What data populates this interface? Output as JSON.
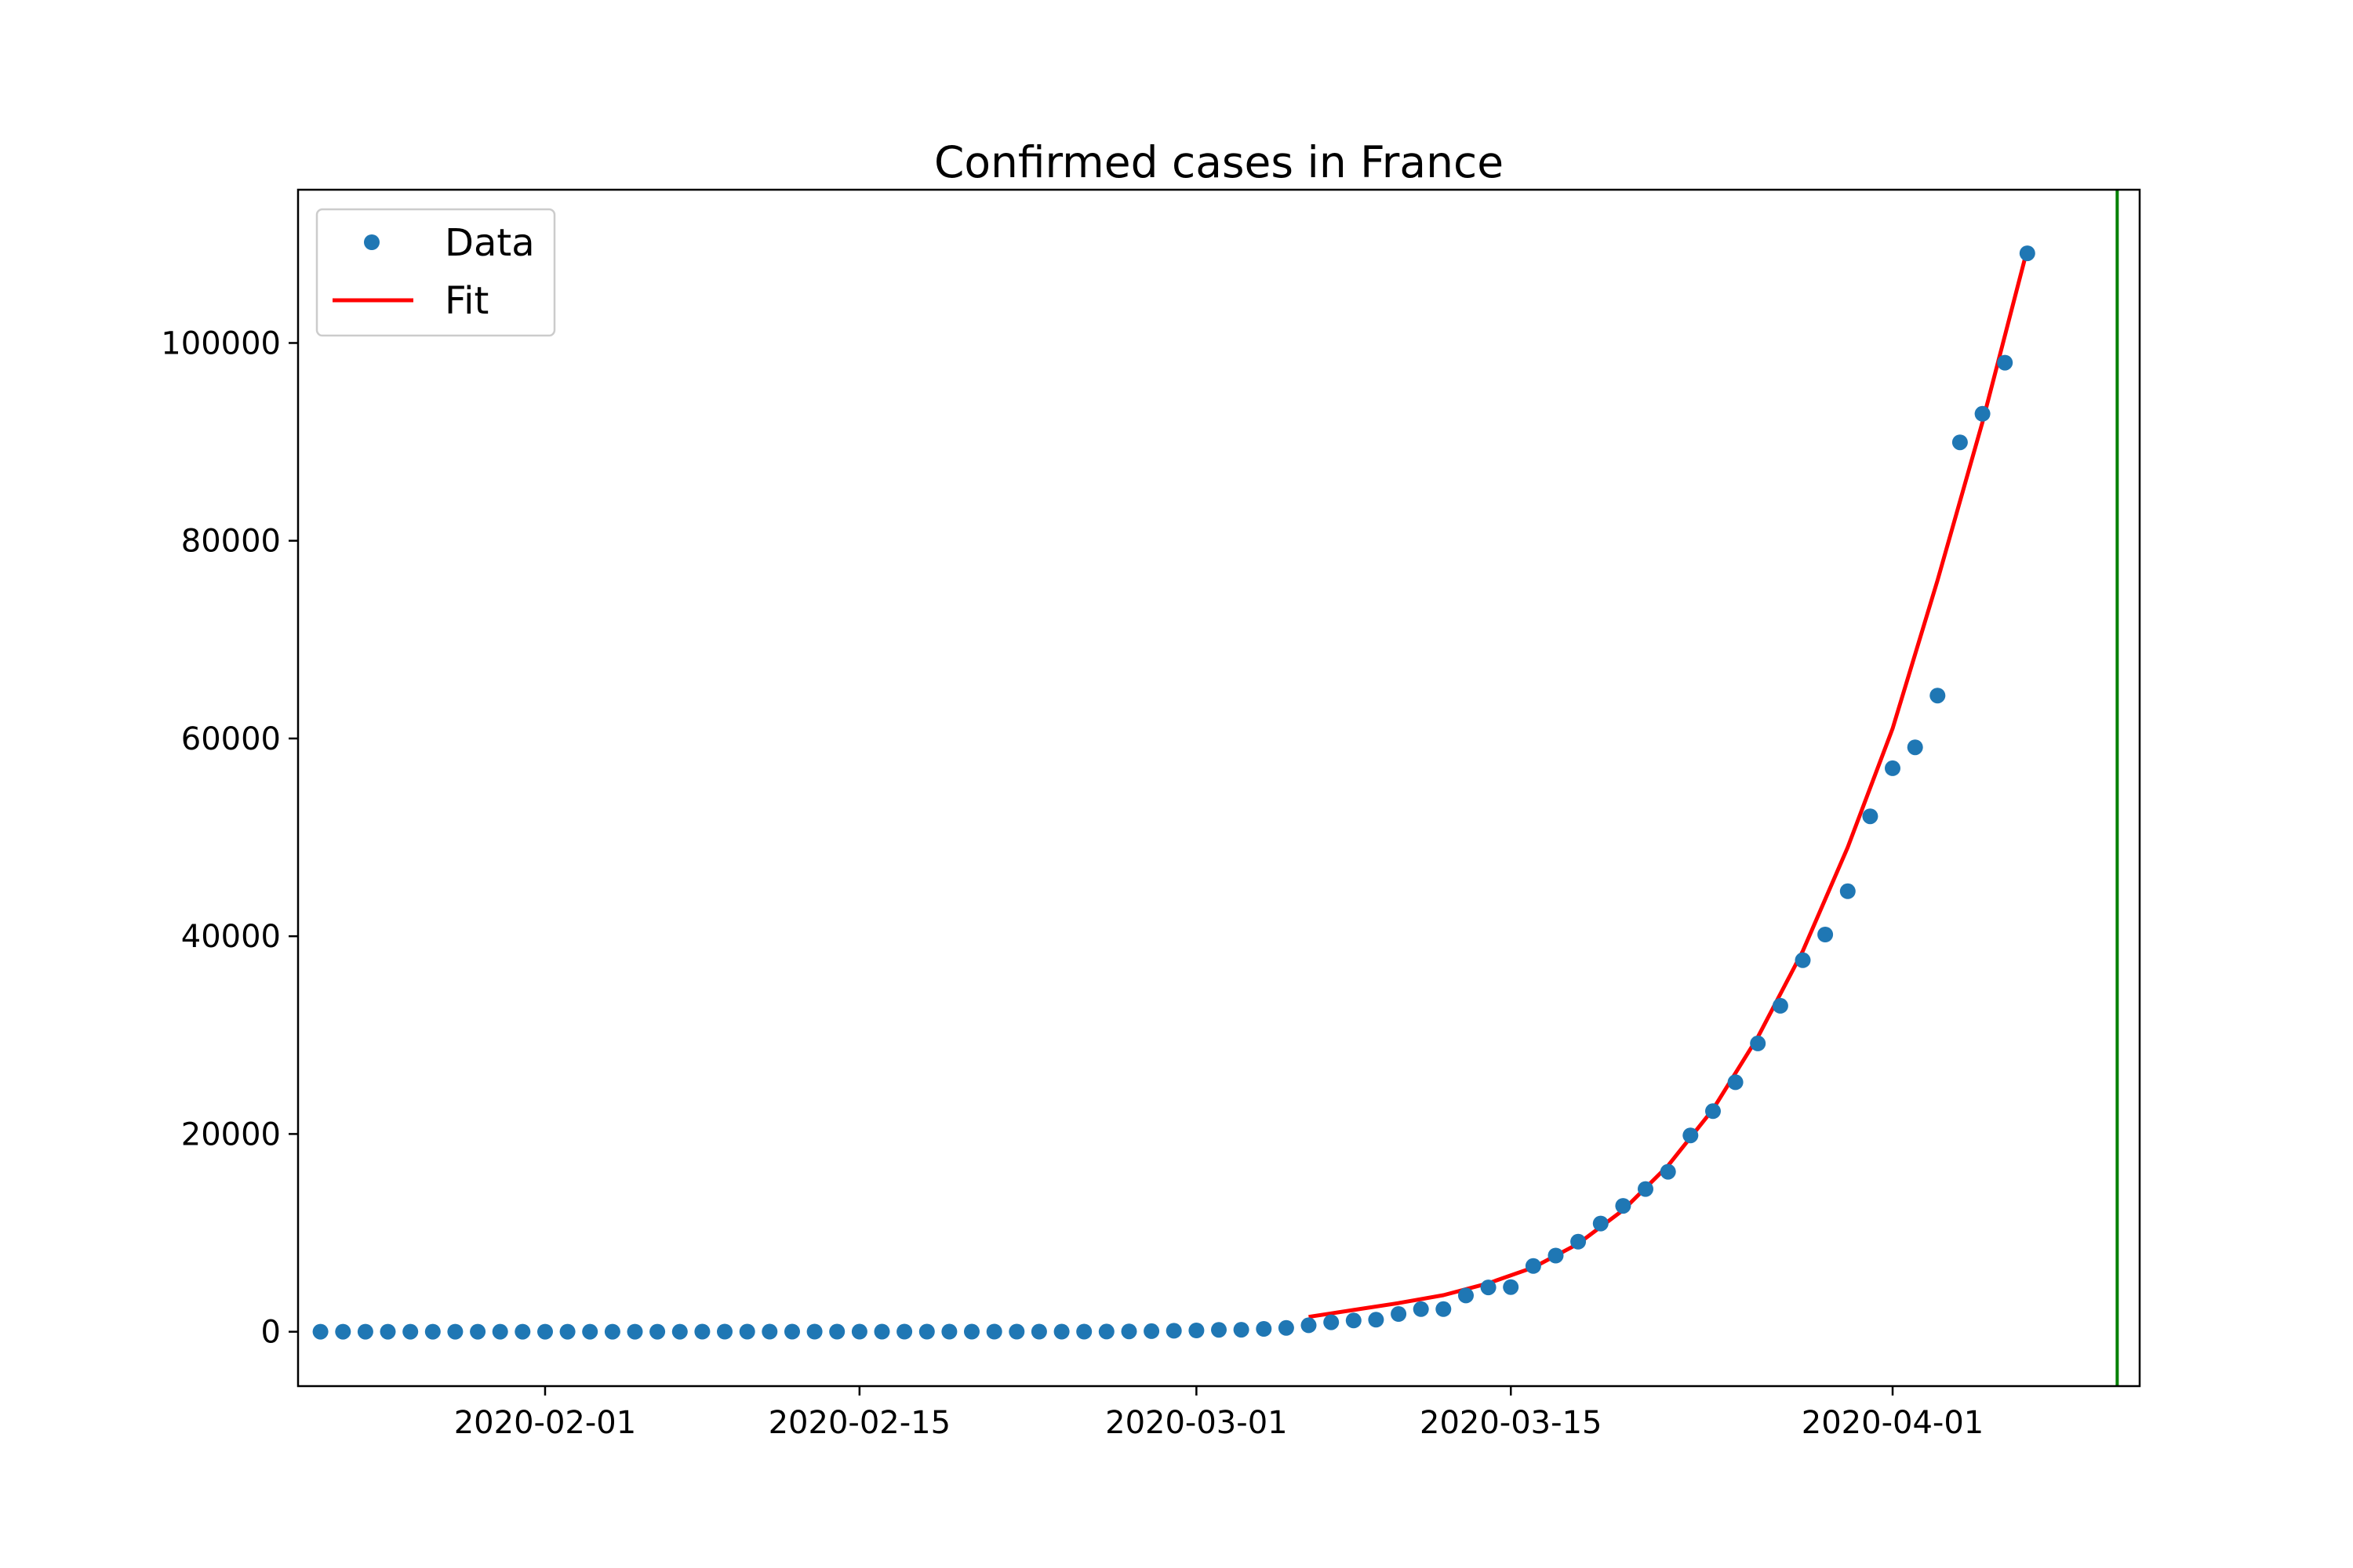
{
  "chart_data": {
    "type": "scatter",
    "title": "Confirmed cases in France",
    "xlabel": "",
    "ylabel": "",
    "x_axis": {
      "type": "date",
      "range": [
        "2020-01-21",
        "2020-04-12"
      ],
      "ticks": [
        "2020-02-01",
        "2020-02-15",
        "2020-03-01",
        "2020-03-15",
        "2020-04-01"
      ],
      "tick_labels": [
        "2020-02-01",
        "2020-02-15",
        "2020-03-01",
        "2020-03-15",
        "2020-04-01"
      ]
    },
    "y_axis": {
      "range": [
        -5500,
        115500
      ],
      "ticks": [
        0,
        20000,
        40000,
        60000,
        80000,
        100000
      ],
      "tick_labels": [
        "0",
        "20000",
        "40000",
        "60000",
        "80000",
        "100000"
      ]
    },
    "grid": false,
    "legend": {
      "position": "top-left",
      "entries": [
        "Data",
        "Fit"
      ]
    },
    "series": [
      {
        "name": "Data",
        "style": "markers",
        "color": "#1f77b4",
        "points": [
          [
            "2020-01-22",
            0
          ],
          [
            "2020-01-23",
            0
          ],
          [
            "2020-01-24",
            2
          ],
          [
            "2020-01-25",
            3
          ],
          [
            "2020-01-26",
            3
          ],
          [
            "2020-01-27",
            3
          ],
          [
            "2020-01-28",
            4
          ],
          [
            "2020-01-29",
            5
          ],
          [
            "2020-01-30",
            5
          ],
          [
            "2020-01-31",
            5
          ],
          [
            "2020-02-01",
            6
          ],
          [
            "2020-02-02",
            6
          ],
          [
            "2020-02-03",
            6
          ],
          [
            "2020-02-04",
            6
          ],
          [
            "2020-02-05",
            6
          ],
          [
            "2020-02-06",
            6
          ],
          [
            "2020-02-07",
            6
          ],
          [
            "2020-02-08",
            11
          ],
          [
            "2020-02-09",
            11
          ],
          [
            "2020-02-10",
            11
          ],
          [
            "2020-02-11",
            11
          ],
          [
            "2020-02-12",
            11
          ],
          [
            "2020-02-13",
            11
          ],
          [
            "2020-02-14",
            11
          ],
          [
            "2020-02-15",
            12
          ],
          [
            "2020-02-16",
            12
          ],
          [
            "2020-02-17",
            12
          ],
          [
            "2020-02-18",
            12
          ],
          [
            "2020-02-19",
            12
          ],
          [
            "2020-02-20",
            12
          ],
          [
            "2020-02-21",
            12
          ],
          [
            "2020-02-22",
            12
          ],
          [
            "2020-02-23",
            12
          ],
          [
            "2020-02-24",
            12
          ],
          [
            "2020-02-25",
            14
          ],
          [
            "2020-02-26",
            18
          ],
          [
            "2020-02-27",
            38
          ],
          [
            "2020-02-28",
            57
          ],
          [
            "2020-02-29",
            100
          ],
          [
            "2020-03-01",
            130
          ],
          [
            "2020-03-02",
            191
          ],
          [
            "2020-03-03",
            204
          ],
          [
            "2020-03-04",
            288
          ],
          [
            "2020-03-05",
            380
          ],
          [
            "2020-03-06",
            656
          ],
          [
            "2020-03-07",
            957
          ],
          [
            "2020-03-08",
            1134
          ],
          [
            "2020-03-09",
            1217
          ],
          [
            "2020-03-10",
            1792
          ],
          [
            "2020-03-11",
            2289
          ],
          [
            "2020-03-12",
            2284
          ],
          [
            "2020-03-13",
            3667
          ],
          [
            "2020-03-14",
            4480
          ],
          [
            "2020-03-15",
            4513
          ],
          [
            "2020-03-16",
            6650
          ],
          [
            "2020-03-17",
            7699
          ],
          [
            "2020-03-18",
            9105
          ],
          [
            "2020-03-19",
            10947
          ],
          [
            "2020-03-20",
            12726
          ],
          [
            "2020-03-21",
            14431
          ],
          [
            "2020-03-22",
            16176
          ],
          [
            "2020-03-23",
            19856
          ],
          [
            "2020-03-24",
            22304
          ],
          [
            "2020-03-25",
            25233
          ],
          [
            "2020-03-26",
            29155
          ],
          [
            "2020-03-27",
            32964
          ],
          [
            "2020-03-28",
            37575
          ],
          [
            "2020-03-29",
            40174
          ],
          [
            "2020-03-30",
            44550
          ],
          [
            "2020-03-31",
            52128
          ],
          [
            "2020-04-01",
            56989
          ],
          [
            "2020-04-02",
            59105
          ],
          [
            "2020-04-03",
            64338
          ],
          [
            "2020-04-04",
            89953
          ],
          [
            "2020-04-05",
            92839
          ],
          [
            "2020-04-06",
            98010
          ],
          [
            "2020-04-07",
            109069
          ]
        ]
      },
      {
        "name": "Fit",
        "style": "line",
        "color": "#ff0000",
        "points": [
          [
            "2020-03-06",
            1500
          ],
          [
            "2020-03-08",
            2200
          ],
          [
            "2020-03-10",
            2900
          ],
          [
            "2020-03-12",
            3700
          ],
          [
            "2020-03-14",
            4900
          ],
          [
            "2020-03-16",
            6500
          ],
          [
            "2020-03-18",
            8900
          ],
          [
            "2020-03-20",
            12300
          ],
          [
            "2020-03-22",
            16800
          ],
          [
            "2020-03-24",
            22500
          ],
          [
            "2020-03-26",
            29800
          ],
          [
            "2020-03-28",
            38500
          ],
          [
            "2020-03-30",
            49000
          ],
          [
            "2020-04-01",
            61000
          ],
          [
            "2020-04-03",
            76000
          ],
          [
            "2020-04-05",
            92000
          ],
          [
            "2020-04-07",
            109500
          ]
        ]
      }
    ],
    "vertical_lines": [
      {
        "x": "2020-04-11",
        "color": "#008000"
      }
    ]
  }
}
